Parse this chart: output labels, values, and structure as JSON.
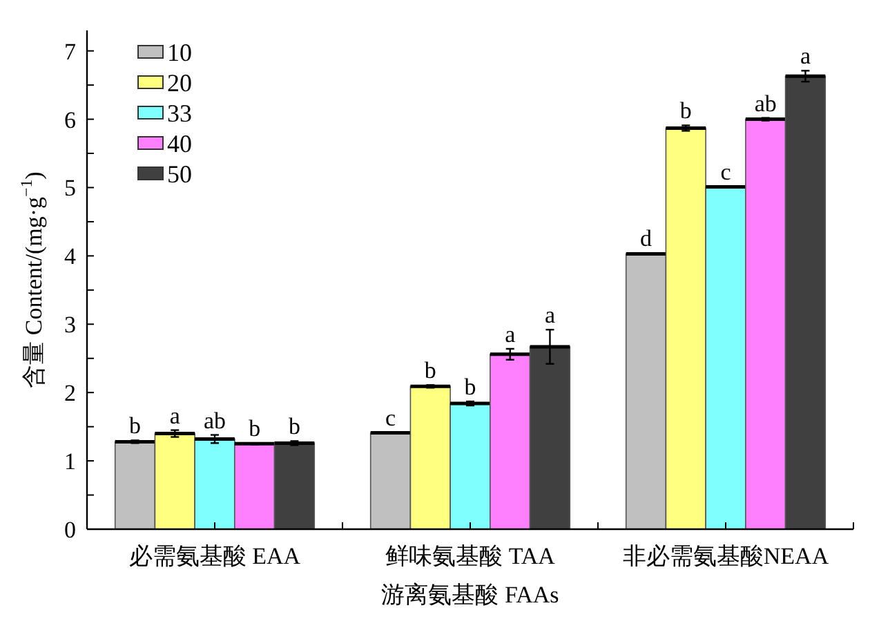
{
  "chart_data": {
    "type": "bar",
    "xlabel": "游离氨基酸 FAAs",
    "ylabel": "含量 Content/(mg·g$^{−1}$)",
    "categories": [
      "必需氨基酸 EAA",
      "鲜味氨基酸  TAA",
      "非必需氨基酸NEAA"
    ],
    "series": [
      {
        "name": "10",
        "color": "#c0c0c0",
        "values": [
          1.28,
          1.41,
          4.03
        ],
        "errors": [
          0.02,
          0.01,
          0.01
        ],
        "value_labels": [
          "b",
          "c",
          "d"
        ]
      },
      {
        "name": "20",
        "color": "#ffff80",
        "values": [
          1.4,
          2.09,
          5.87
        ],
        "errors": [
          0.05,
          0.02,
          0.04
        ],
        "value_labels": [
          "a",
          "b",
          "b"
        ]
      },
      {
        "name": "33",
        "color": "#80ffff",
        "values": [
          1.32,
          1.84,
          5.01
        ],
        "errors": [
          0.06,
          0.03,
          0.01
        ],
        "value_labels": [
          "ab",
          "b",
          "c"
        ]
      },
      {
        "name": "40",
        "color": "#ff80ff",
        "values": [
          1.25,
          2.56,
          6.0
        ],
        "errors": [
          0.01,
          0.08,
          0.02
        ],
        "value_labels": [
          "b",
          "a",
          "ab"
        ]
      },
      {
        "name": "50",
        "color": "#404040",
        "values": [
          1.26,
          2.67,
          6.63
        ],
        "errors": [
          0.03,
          0.25,
          0.08
        ],
        "value_labels": [
          "b",
          "a",
          "a"
        ]
      }
    ],
    "ylim": [
      0,
      7.3
    ],
    "yticks": [
      0,
      {
        "value": 0.5,
        "label": null
      },
      1,
      {
        "value": 1.5,
        "label": null
      },
      2,
      {
        "value": 2.5,
        "label": null
      },
      3,
      {
        "value": 3.5,
        "label": null
      },
      4,
      {
        "value": 4.5,
        "label": null
      },
      5,
      {
        "value": 5.5,
        "label": null
      },
      6,
      {
        "value": 6.5,
        "label": null
      },
      7
    ],
    "legend": "top left",
    "grid": false
  }
}
